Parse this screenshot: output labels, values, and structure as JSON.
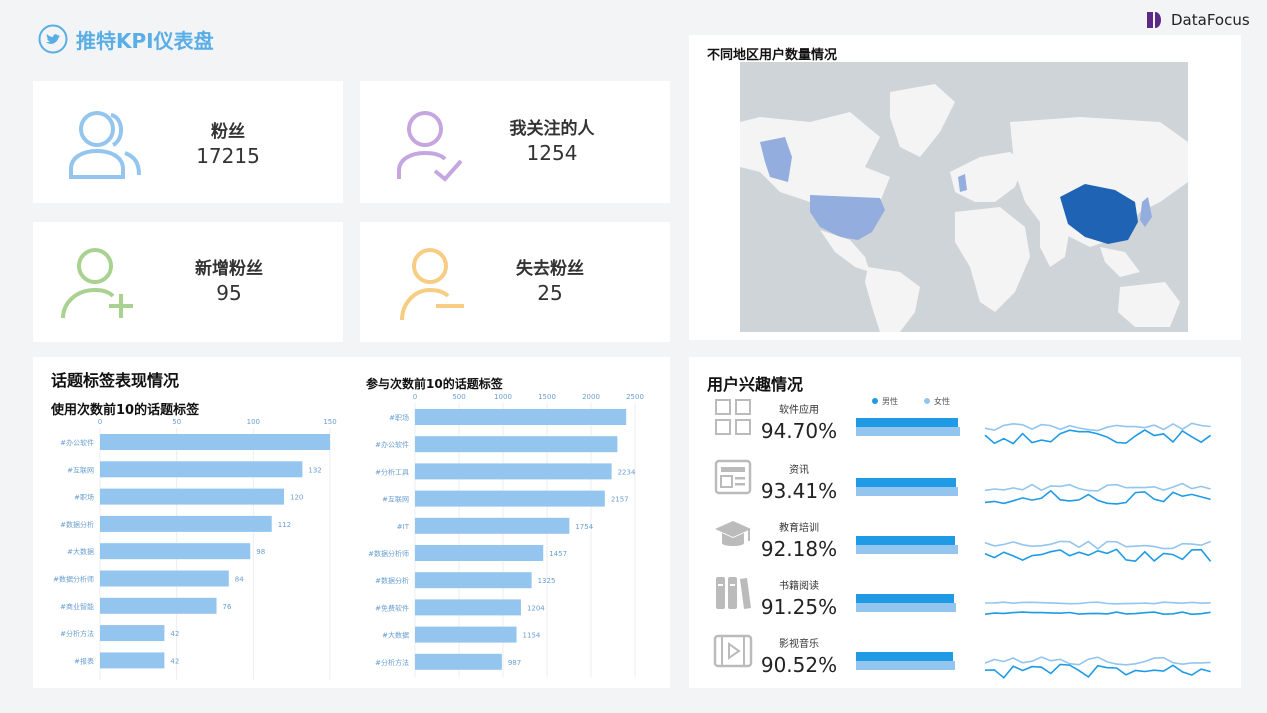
{
  "header": {
    "title": "推特KPI仪表盘",
    "brand": "DataFocus"
  },
  "kpis": [
    {
      "label": "粉丝",
      "value": "17215"
    },
    {
      "label": "我关注的人",
      "value": "1254"
    },
    {
      "label": "新增粉丝",
      "value": "95"
    },
    {
      "label": "失去粉丝",
      "value": "25"
    }
  ],
  "map": {
    "title": "不同地区用户数量情况"
  },
  "hashtag_section": {
    "title": "话题标签表现情况"
  },
  "chart_data": [
    {
      "type": "bar",
      "orientation": "horizontal",
      "title": "使用次数前10的话题标签",
      "categories": [
        "#办公软件",
        "#互联网",
        "#职场",
        "#数据分析",
        "#大数据",
        "#数据分析师",
        "#商业智能",
        "#分析方法",
        "#报表"
      ],
      "values": [
        150,
        132,
        120,
        112,
        98,
        84,
        76,
        42,
        42
      ],
      "value_labels": [
        "",
        "132",
        "120",
        "112",
        "98",
        "84",
        "76",
        "42",
        "42"
      ],
      "ticks": [
        "0",
        "50",
        "100",
        "150"
      ],
      "xlim": [
        0,
        150
      ],
      "color": "#93c5ee"
    },
    {
      "type": "bar",
      "orientation": "horizontal",
      "title": "参与次数前10的话题标签",
      "categories": [
        "#职场",
        "#办公软件",
        "#分析工具",
        "#互联网",
        "#IT",
        "#数据分析师",
        "#数据分析",
        "#免费软件",
        "#大数据",
        "#分析方法"
      ],
      "values": [
        2400,
        2300,
        2234,
        2157,
        1754,
        1457,
        1325,
        1204,
        1154,
        987
      ],
      "value_labels": [
        "",
        "",
        "2234",
        "2157",
        "1754",
        "1457",
        "1325",
        "1204",
        "1154",
        "987"
      ],
      "ticks": [
        "0",
        "500",
        "1000",
        "1500",
        "2000",
        "2500"
      ],
      "xlim": [
        0,
        2500
      ],
      "color": "#93c5ee"
    }
  ],
  "interest": {
    "title": "用户兴趣情况",
    "legend": {
      "male": "男性",
      "female": "女性"
    },
    "colors": {
      "male": "#1f9be6",
      "female": "#93c5ee"
    },
    "items": [
      {
        "label": "软件应用",
        "pct": "94.70%",
        "male": 0.94,
        "female": 0.96
      },
      {
        "label": "资讯",
        "pct": "93.41%",
        "male": 0.93,
        "female": 0.94
      },
      {
        "label": "教育培训",
        "pct": "92.18%",
        "male": 0.92,
        "female": 0.94
      },
      {
        "label": "书籍阅读",
        "pct": "91.25%",
        "male": 0.91,
        "female": 0.93
      },
      {
        "label": "影视音乐",
        "pct": "90.52%",
        "male": 0.9,
        "female": 0.92
      }
    ]
  }
}
